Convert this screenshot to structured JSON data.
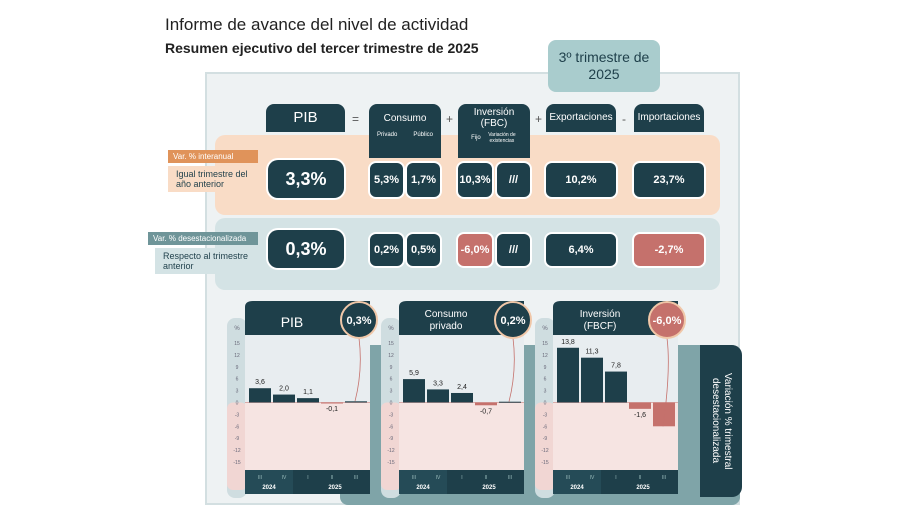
{
  "header": {
    "title": "Informe de avance del nivel de actividad",
    "subtitle": "Resumen ejecutivo del tercer trimestre de 2025",
    "badge": "3º trimestre de 2025"
  },
  "columns": {
    "pib": "PIB",
    "consumo": "Consumo",
    "privado": "Privado",
    "publico": "Público",
    "inversion": "Inversión (FBC)",
    "fijo": "Fijo",
    "variacion_existencias": "Variación de existencias",
    "exportaciones": "Exportaciones",
    "importaciones": "Importaciones",
    "ops": [
      "=",
      "+",
      "+",
      "-"
    ]
  },
  "row_interanual": {
    "label": "Var. % interanual",
    "description": "Igual trimestre del año anterior",
    "pib": "3,3%",
    "privado": "5,3%",
    "publico": "1,7%",
    "fijo": "10,3%",
    "existencias": "///",
    "exportaciones": "10,2%",
    "importaciones": "23,7%"
  },
  "row_desest": {
    "label": "Var. % desestacionalizada",
    "description": "Respecto al trimestre anterior",
    "pib": "0,3%",
    "privado": "0,2%",
    "publico": "0,5%",
    "fijo": "-6,0%",
    "existencias": "///",
    "exportaciones": "6,4%",
    "importaciones": "-2,7%"
  },
  "side_label": "Variación % trimestral desestacionalizada",
  "colors": {
    "dark": "#1e3f4a",
    "negative": "#c5716c",
    "interanual": "#e0935a",
    "desest": "#6f9599"
  },
  "chart_data": [
    {
      "type": "bar",
      "title": "PIB",
      "highlight": "0,3%",
      "ylabel": "%",
      "categories": [
        "III",
        "IV",
        "I",
        "II",
        "III"
      ],
      "years": [
        "2024",
        "2025"
      ],
      "values": [
        3.6,
        2.0,
        1.1,
        -0.1,
        0.3
      ],
      "labels": [
        "3,6",
        "2,0",
        "1,1",
        "-0,1",
        ""
      ],
      "yticks": [
        15,
        12,
        9,
        6,
        3,
        0,
        -3,
        -6,
        -9,
        -12,
        -15
      ],
      "ylim": [
        -15,
        15
      ]
    },
    {
      "type": "bar",
      "title": "Consumo privado",
      "highlight": "0,2%",
      "ylabel": "%",
      "categories": [
        "III",
        "IV",
        "I",
        "II",
        "III"
      ],
      "years": [
        "2024",
        "2025"
      ],
      "values": [
        5.9,
        3.3,
        2.4,
        -0.7,
        0.2
      ],
      "labels": [
        "5,9",
        "3,3",
        "2,4",
        "-0,7",
        ""
      ],
      "yticks": [
        15,
        12,
        9,
        6,
        3,
        0,
        -3,
        -6,
        -9,
        -12,
        -15
      ],
      "ylim": [
        -15,
        15
      ]
    },
    {
      "type": "bar",
      "title": "Inversión (FBCF)",
      "highlight": "-6,0%",
      "ylabel": "%",
      "categories": [
        "III",
        "IV",
        "I",
        "II",
        "III"
      ],
      "years": [
        "2024",
        "2025"
      ],
      "values": [
        13.8,
        11.3,
        7.8,
        -1.6,
        -6.0
      ],
      "labels": [
        "13,8",
        "11,3",
        "7,8",
        "-1,6",
        ""
      ],
      "yticks": [
        15,
        12,
        9,
        6,
        3,
        0,
        -3,
        -6,
        -9,
        -12,
        -15
      ],
      "ylim": [
        -15,
        15
      ]
    }
  ]
}
